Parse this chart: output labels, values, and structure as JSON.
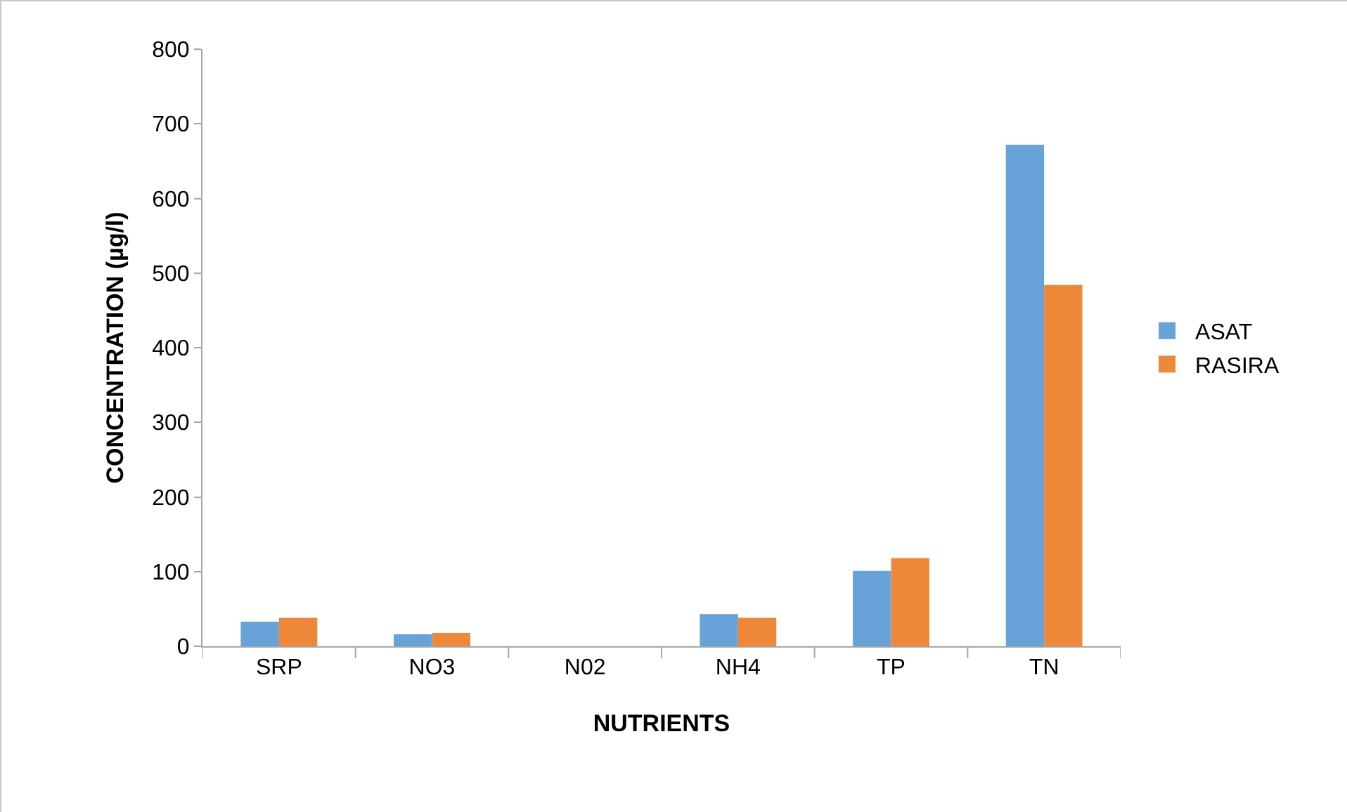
{
  "chart_data": {
    "type": "bar",
    "xlabel": "NUTRIENTS",
    "ylabel": "CONCENTRATION (µg/l)",
    "categories": [
      "SRP",
      "NO3",
      "N02",
      "NH4",
      "TP",
      "TN"
    ],
    "series": [
      {
        "name": "ASAT",
        "color": "#67a3d9",
        "values": [
          33,
          16,
          0,
          43,
          101,
          672
        ]
      },
      {
        "name": "RASIRA",
        "color": "#ef8739",
        "values": [
          38,
          18,
          0,
          38,
          118,
          484
        ]
      }
    ],
    "ylim": [
      0,
      800
    ],
    "yticks": [
      0,
      100,
      200,
      300,
      400,
      500,
      600,
      700,
      800
    ],
    "grid": false,
    "legend": "right"
  }
}
